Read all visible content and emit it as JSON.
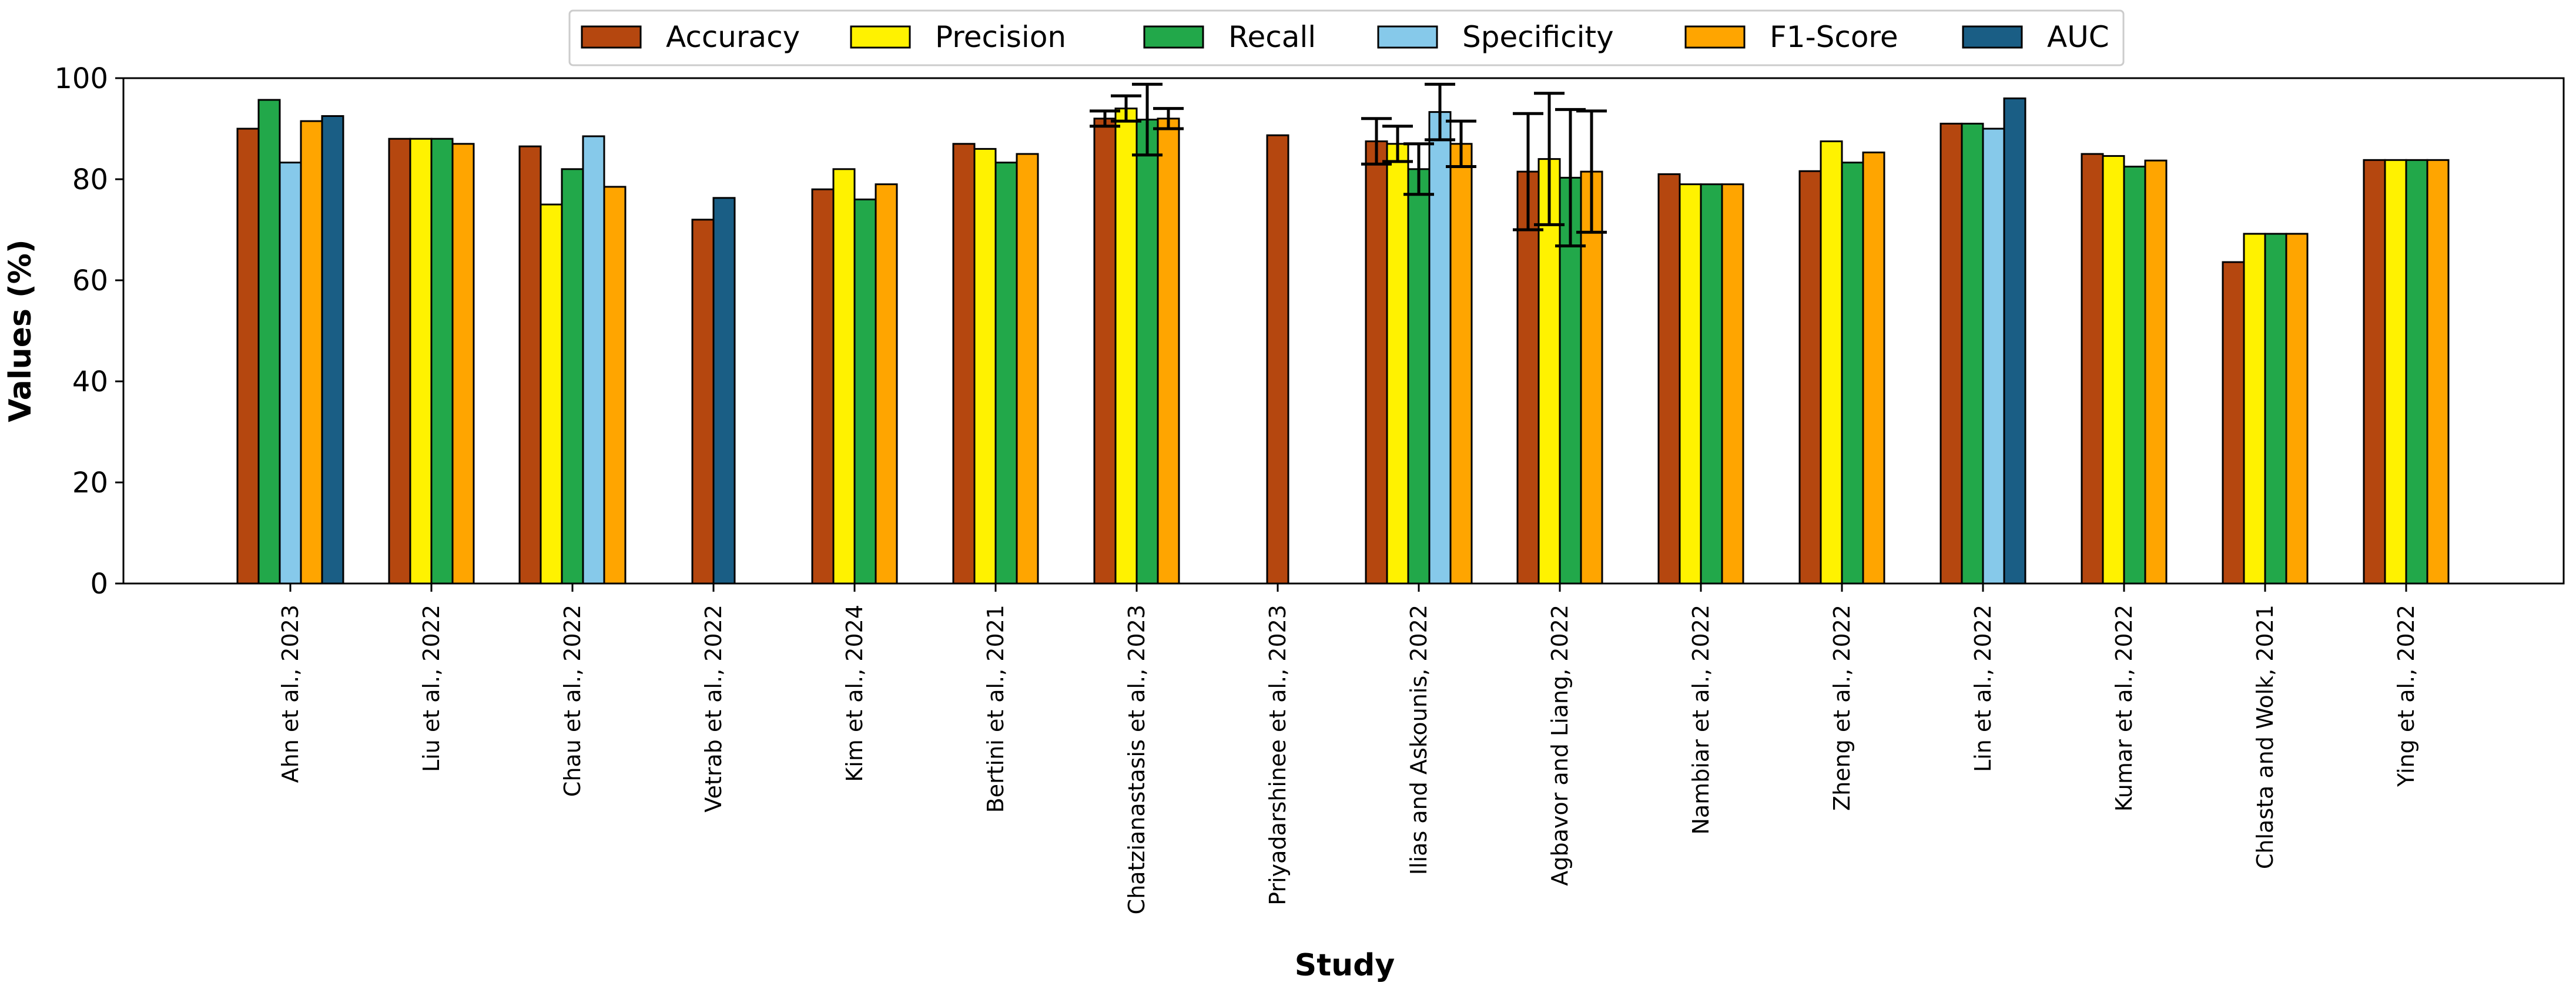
{
  "chart_data": {
    "type": "bar",
    "title": "",
    "xlabel": "Study",
    "ylabel": "Values (%)",
    "ylim": [
      0,
      100
    ],
    "yticks": [
      0,
      20,
      40,
      60,
      80,
      100
    ],
    "grid": false,
    "legend_position": "top-center",
    "categories": [
      "Ahn et al., 2023",
      "Liu et al., 2022",
      "Chau et al., 2022",
      "Vetrab et al., 2022",
      "Kim et al., 2024",
      "Bertini et al., 2021",
      "Chatzianastasis et al., 2023",
      "Priyadarshinee et al., 2023",
      "Ilias and Askounis, 2022",
      "Agbavor and Liang, 2022",
      "Nambiar et al., 2022",
      "Zheng et al., 2022",
      "Lin et al., 2022",
      "Kumar et al., 2022",
      "Chlasta and Wolk,  2021",
      "Ying et al., 2022"
    ],
    "series": [
      {
        "name": "Accuracy",
        "color": "#B5470F",
        "values": [
          90.0,
          88.0,
          86.5,
          72.0,
          78.0,
          87.0,
          92.0,
          88.7,
          87.5,
          81.5,
          81.0,
          81.6,
          91.0,
          85.0,
          63.6,
          83.8
        ],
        "errors": [
          null,
          null,
          null,
          null,
          null,
          null,
          1.5,
          null,
          4.5,
          11.5,
          null,
          null,
          null,
          null,
          null,
          null
        ]
      },
      {
        "name": "Precision",
        "color": "#FFF200",
        "values": [
          null,
          88.0,
          75.0,
          null,
          82.0,
          86.0,
          94.0,
          null,
          87.0,
          84.0,
          79.0,
          87.5,
          null,
          84.6,
          69.2,
          83.8
        ],
        "errors": [
          null,
          null,
          null,
          null,
          null,
          null,
          2.5,
          null,
          3.5,
          13.0,
          null,
          null,
          null,
          null,
          null,
          null
        ]
      },
      {
        "name": "Recall",
        "color": "#22A84A",
        "values": [
          95.7,
          88.0,
          82.0,
          null,
          76.0,
          83.3,
          91.8,
          null,
          82.0,
          80.3,
          79.0,
          83.3,
          91.0,
          82.5,
          69.2,
          83.8
        ],
        "errors": [
          null,
          null,
          null,
          null,
          null,
          null,
          7.0,
          null,
          5.0,
          13.5,
          null,
          null,
          null,
          null,
          null,
          null
        ]
      },
      {
        "name": "Specificity",
        "color": "#86C9EA",
        "values": [
          83.3,
          null,
          88.5,
          null,
          null,
          null,
          null,
          null,
          93.3,
          null,
          null,
          null,
          90.0,
          null,
          null,
          null
        ],
        "errors": [
          null,
          null,
          null,
          null,
          null,
          null,
          null,
          null,
          5.5,
          null,
          null,
          null,
          null,
          null,
          null,
          null
        ]
      },
      {
        "name": "F1-Score",
        "color": "#FFA500",
        "values": [
          91.5,
          87.0,
          78.5,
          null,
          79.0,
          85.0,
          92.0,
          null,
          87.0,
          81.5,
          79.0,
          85.3,
          null,
          83.7,
          69.2,
          83.8
        ],
        "errors": [
          null,
          null,
          null,
          null,
          null,
          null,
          2.0,
          null,
          4.5,
          12.0,
          null,
          null,
          null,
          null,
          null,
          null
        ]
      },
      {
        "name": "AUC",
        "color": "#1A5E85",
        "values": [
          92.5,
          null,
          null,
          76.3,
          null,
          null,
          null,
          null,
          null,
          null,
          null,
          null,
          96.0,
          null,
          null,
          null
        ],
        "errors": [
          null,
          null,
          null,
          null,
          null,
          null,
          null,
          null,
          null,
          null,
          null,
          null,
          null,
          null,
          null,
          null
        ]
      }
    ]
  }
}
